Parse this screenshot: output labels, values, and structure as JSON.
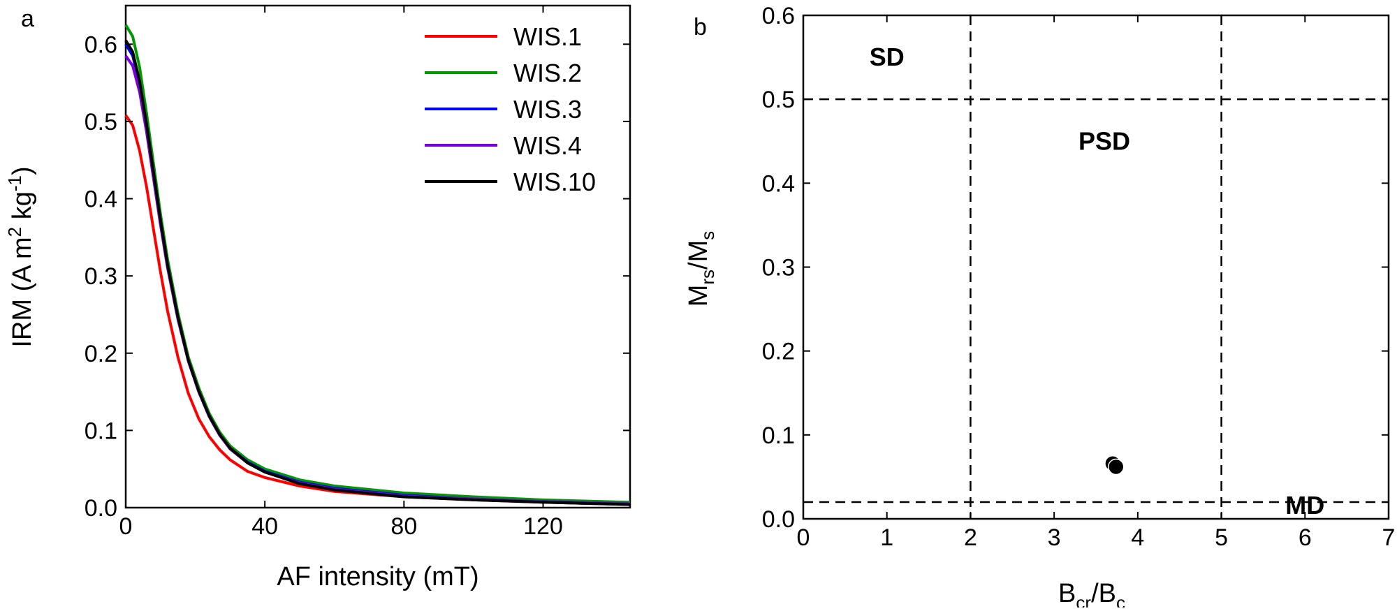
{
  "chart_data": [
    {
      "panel": "a",
      "type": "line",
      "title": "",
      "xlabel": "AF intensity (mT)",
      "ylabel": {
        "main": "IRM (A m",
        "sup1": "2",
        "mid": " kg",
        "sup2": "-1",
        "end": ")"
      },
      "xlim": [
        0,
        145
      ],
      "ylim": [
        0,
        0.65
      ],
      "xticks": [
        "0",
        "40",
        "80",
        "120"
      ],
      "xtick_values": [
        0,
        40,
        80,
        120
      ],
      "yticks": [
        "0.0",
        "0.1",
        "0.2",
        "0.3",
        "0.4",
        "0.5",
        "0.6"
      ],
      "ytick_values": [
        0,
        0.1,
        0.2,
        0.3,
        0.4,
        0.5,
        0.6
      ],
      "grid": false,
      "legend_position": "top-right",
      "series": [
        {
          "name": "WIS.1",
          "color": "#ff0000",
          "x": [
            0,
            2,
            4,
            6,
            8,
            10,
            12,
            15,
            18,
            21,
            24,
            27,
            30,
            35,
            40,
            50,
            60,
            80,
            100,
            120,
            145
          ],
          "values": [
            0.508,
            0.495,
            0.462,
            0.415,
            0.36,
            0.305,
            0.255,
            0.195,
            0.148,
            0.115,
            0.092,
            0.075,
            0.062,
            0.047,
            0.039,
            0.028,
            0.021,
            0.014,
            0.01,
            0.007,
            0.004
          ]
        },
        {
          "name": "WIS.2",
          "color": "#009900",
          "x": [
            0,
            2,
            4,
            6,
            8,
            10,
            12,
            15,
            18,
            21,
            24,
            27,
            30,
            35,
            40,
            50,
            60,
            80,
            100,
            120,
            145
          ],
          "values": [
            0.625,
            0.61,
            0.57,
            0.51,
            0.445,
            0.38,
            0.322,
            0.252,
            0.195,
            0.155,
            0.122,
            0.098,
            0.08,
            0.062,
            0.05,
            0.036,
            0.028,
            0.019,
            0.014,
            0.01,
            0.007
          ]
        },
        {
          "name": "WIS.3",
          "color": "#0000ff",
          "x": [
            0,
            2,
            4,
            6,
            8,
            10,
            12,
            15,
            18,
            21,
            24,
            27,
            30,
            35,
            40,
            50,
            60,
            80,
            100,
            120,
            145
          ],
          "values": [
            0.6,
            0.585,
            0.548,
            0.492,
            0.43,
            0.368,
            0.312,
            0.245,
            0.19,
            0.15,
            0.118,
            0.094,
            0.077,
            0.059,
            0.047,
            0.033,
            0.025,
            0.016,
            0.011,
            0.008,
            0.005
          ]
        },
        {
          "name": "WIS.4",
          "color": "#7a00d9",
          "x": [
            0,
            2,
            4,
            6,
            8,
            10,
            12,
            15,
            18,
            21,
            24,
            27,
            30,
            35,
            40,
            50,
            60,
            80,
            100,
            120,
            145
          ],
          "values": [
            0.585,
            0.572,
            0.538,
            0.486,
            0.426,
            0.366,
            0.311,
            0.244,
            0.19,
            0.15,
            0.118,
            0.094,
            0.076,
            0.058,
            0.046,
            0.032,
            0.024,
            0.015,
            0.011,
            0.008,
            0.005
          ]
        },
        {
          "name": "WIS.10",
          "color": "#000000",
          "x": [
            0,
            2,
            4,
            6,
            8,
            10,
            12,
            15,
            18,
            21,
            24,
            27,
            30,
            35,
            40,
            50,
            60,
            80,
            100,
            120,
            145
          ],
          "values": [
            0.605,
            0.59,
            0.552,
            0.496,
            0.434,
            0.372,
            0.315,
            0.247,
            0.191,
            0.151,
            0.119,
            0.095,
            0.077,
            0.058,
            0.046,
            0.031,
            0.023,
            0.014,
            0.01,
            0.007,
            0.004
          ]
        }
      ]
    },
    {
      "panel": "b",
      "type": "scatter",
      "title": "",
      "xlabel": {
        "main": "B",
        "sub": "cr",
        "mid": "/B",
        "sub2": "c"
      },
      "ylabel": {
        "main": "M",
        "sub": "rs",
        "mid": "/M",
        "sub2": "s"
      },
      "xlim": [
        0,
        7
      ],
      "ylim": [
        0,
        0.6
      ],
      "xticks": [
        "0",
        "1",
        "2",
        "3",
        "4",
        "5",
        "6",
        "7"
      ],
      "xtick_values": [
        0,
        1,
        2,
        3,
        4,
        5,
        6,
        7
      ],
      "yticks": [
        "0.0",
        "0.1",
        "0.2",
        "0.3",
        "0.4",
        "0.5",
        "0.6"
      ],
      "ytick_values": [
        0,
        0.1,
        0.2,
        0.3,
        0.4,
        0.5,
        0.6
      ],
      "grid": false,
      "reference_lines": {
        "vertical": [
          2,
          5
        ],
        "horizontal": [
          0.5,
          0.02
        ],
        "style": "dashed"
      },
      "regions": [
        {
          "label": "SD",
          "x": 1.0,
          "y": 0.54
        },
        {
          "label": "PSD",
          "x": 3.6,
          "y": 0.44
        },
        {
          "label": "MD",
          "x": 6.0,
          "y": 0.006
        }
      ],
      "points": [
        {
          "x": 3.7,
          "y": 0.066
        },
        {
          "x": 3.74,
          "y": 0.062
        }
      ]
    }
  ]
}
